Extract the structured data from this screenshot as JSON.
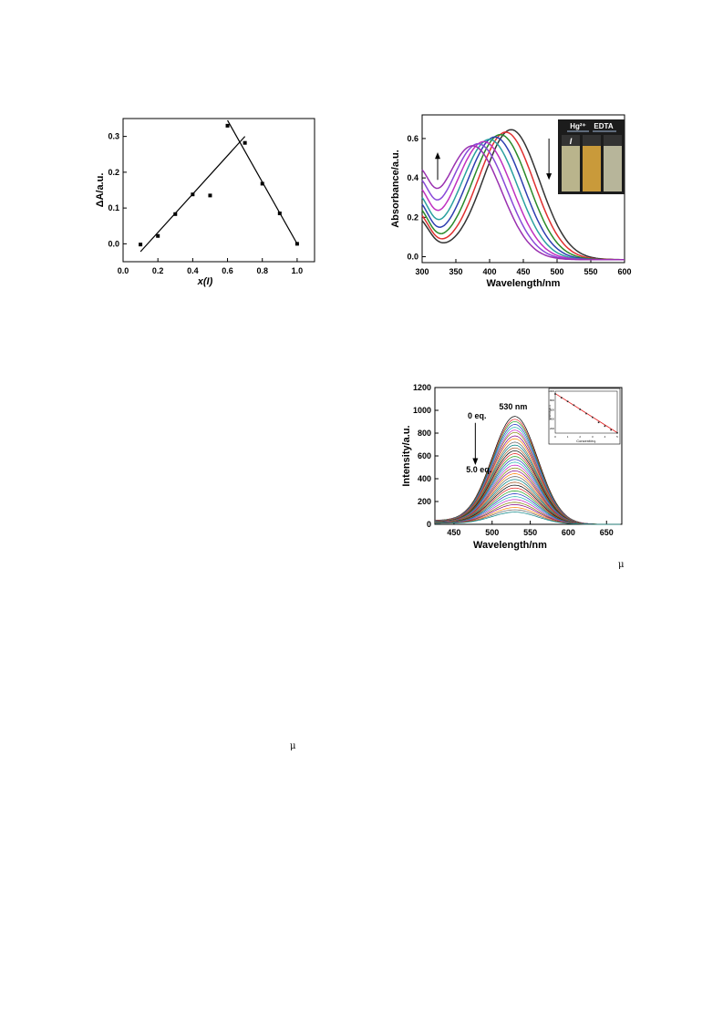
{
  "symbols": {
    "mu_right": "μ",
    "mu_left": "μ"
  },
  "chart_data": [
    {
      "type": "scatter",
      "title": "",
      "xlabel": "x(I)",
      "ylabel": "ΔA/a.u.",
      "xlim": [
        0.0,
        1.1
      ],
      "ylim": [
        -0.05,
        0.35
      ],
      "xticks": [
        "0.0",
        "0.2",
        "0.4",
        "0.6",
        "0.8",
        "1.0"
      ],
      "yticks": [
        "0.0",
        "0.1",
        "0.2",
        "0.3"
      ],
      "points": [
        {
          "x": 0.1,
          "y": -0.002
        },
        {
          "x": 0.2,
          "y": 0.022
        },
        {
          "x": 0.3,
          "y": 0.083
        },
        {
          "x": 0.4,
          "y": 0.138
        },
        {
          "x": 0.5,
          "y": 0.135
        },
        {
          "x": 0.6,
          "y": 0.33
        },
        {
          "x": 0.7,
          "y": 0.282
        },
        {
          "x": 0.8,
          "y": 0.168
        },
        {
          "x": 0.9,
          "y": 0.085
        },
        {
          "x": 1.0,
          "y": 0.0
        }
      ],
      "fit_lines": [
        {
          "x": [
            0.1,
            0.7
          ],
          "y": [
            -0.022,
            0.3
          ]
        },
        {
          "x": [
            0.6,
            1.0
          ],
          "y": [
            0.345,
            0.0
          ]
        }
      ],
      "colors": {
        "marks": "#000000"
      }
    },
    {
      "type": "line",
      "title": "",
      "xlabel": "Wavelength/nm",
      "ylabel": "Absorbance/a.u.",
      "xlim": [
        300,
        600
      ],
      "ylim": [
        -0.03,
        0.72
      ],
      "xticks": [
        "300",
        "350",
        "400",
        "450",
        "500",
        "550",
        "600"
      ],
      "yticks": [
        "0.0",
        "0.2",
        "0.4",
        "0.6"
      ],
      "isosbestic_nm": 390,
      "series_colors": [
        "#333333",
        "#e03030",
        "#2a8a2a",
        "#2e3fb0",
        "#2aa0a0",
        "#c030c0",
        "#8a48d8",
        "#9a30b0"
      ],
      "inset": {
        "labels": [
          "Hg²⁺",
          "EDTA"
        ],
        "vial_marker": "I"
      }
    },
    {
      "type": "line",
      "title": "",
      "xlabel": "Wavelength/nm",
      "ylabel": "Intensity/a.u.",
      "xlim": [
        425,
        670
      ],
      "ylim": [
        0,
        1200
      ],
      "xticks": [
        "450",
        "500",
        "550",
        "600",
        "650"
      ],
      "yticks": [
        "0",
        "200",
        "400",
        "600",
        "800",
        "1000",
        "1200"
      ],
      "peak_nm": 530,
      "annotations": {
        "peak": "530 nm",
        "start": "0 eq.",
        "end": "5.0 eq."
      },
      "peak_intensities": [
        940,
        915,
        895,
        870,
        845,
        820,
        800,
        770,
        745,
        715,
        690,
        665,
        640,
        615,
        590,
        565,
        540,
        515,
        490,
        465,
        440,
        415,
        390,
        365,
        340,
        315,
        290,
        265,
        240,
        215,
        190,
        170,
        145,
        125,
        105
      ],
      "inset": {
        "type": "scatter",
        "xlabel": "Concent/eq.",
        "ylabel": "Intensity/a.u.",
        "xlim": [
          0,
          5
        ],
        "ylim": [
          100,
          1000
        ],
        "xticks": [
          "0",
          "1",
          "2",
          "3",
          "4",
          "5"
        ],
        "yticks": [
          "200",
          "400",
          "600",
          "800",
          "1000"
        ],
        "points": [
          {
            "x": 0,
            "y": 940
          },
          {
            "x": 0.5,
            "y": 860
          },
          {
            "x": 1,
            "y": 780
          },
          {
            "x": 1.5,
            "y": 700
          },
          {
            "x": 2,
            "y": 610
          },
          {
            "x": 2.5,
            "y": 520
          },
          {
            "x": 3,
            "y": 440
          },
          {
            "x": 3.5,
            "y": 330
          },
          {
            "x": 4,
            "y": 250
          },
          {
            "x": 4.5,
            "y": 170
          },
          {
            "x": 5,
            "y": 105
          }
        ],
        "fit": {
          "x": [
            0,
            5
          ],
          "y": [
            950,
            110
          ]
        },
        "colors": {
          "points": "#222222",
          "fit": "#e02020"
        }
      }
    }
  ]
}
